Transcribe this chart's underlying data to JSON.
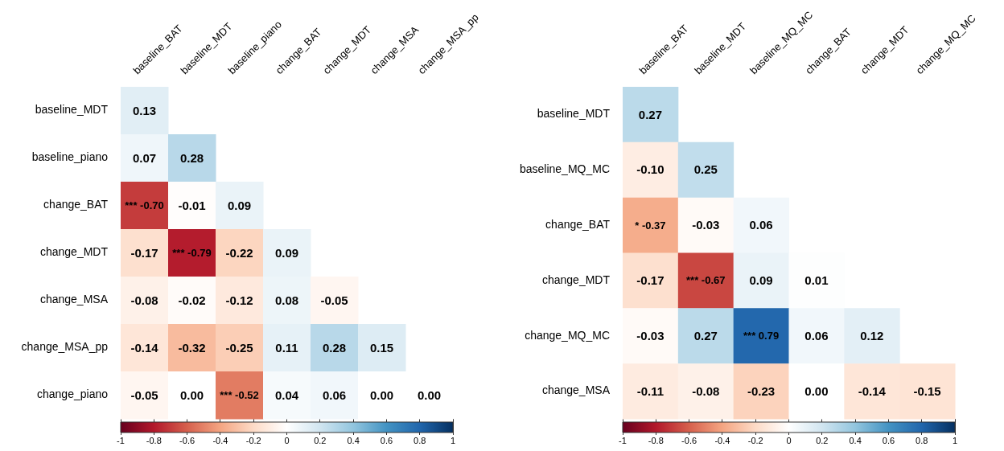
{
  "chart_data": [
    {
      "type": "heatmap",
      "categories": [
        "baseline_BAT",
        "baseline_MDT",
        "baseline_piano",
        "change_BAT",
        "change_MDT",
        "change_MSA",
        "change_MSA_pp"
      ],
      "y_categories": [
        "baseline_MDT",
        "baseline_piano",
        "change_BAT",
        "change_MDT",
        "change_MSA",
        "change_MSA_pp",
        "change_piano"
      ],
      "cells": [
        [
          0.13,
          null,
          null,
          null,
          null,
          null,
          null
        ],
        [
          0.07,
          0.28,
          null,
          null,
          null,
          null,
          null
        ],
        [
          -0.7,
          -0.01,
          0.09,
          null,
          null,
          null,
          null
        ],
        [
          -0.17,
          -0.79,
          -0.22,
          0.09,
          null,
          null,
          null
        ],
        [
          -0.08,
          -0.02,
          -0.12,
          0.08,
          -0.05,
          null,
          null
        ],
        [
          -0.14,
          -0.32,
          -0.25,
          0.11,
          0.28,
          0.15,
          null
        ],
        [
          -0.05,
          0.0,
          -0.52,
          0.04,
          0.06,
          0.0,
          0.0
        ]
      ],
      "cell_labels": [
        [
          "0.13",
          null,
          null,
          null,
          null,
          null,
          null
        ],
        [
          "0.07",
          "0.28",
          null,
          null,
          null,
          null,
          null
        ],
        [
          "***\n-0.70",
          "-0.01",
          "0.09",
          null,
          null,
          null,
          null
        ],
        [
          "-0.17",
          "***\n-0.79",
          "-0.22",
          "0.09",
          null,
          null,
          null
        ],
        [
          "-0.08",
          "-0.02",
          "-0.12",
          "0.08",
          "-0.05",
          null,
          null
        ],
        [
          "-0.14",
          "-0.32",
          "-0.25",
          "0.11",
          "0.28",
          "0.15",
          null
        ],
        [
          "-0.05",
          "0.00",
          "***\n-0.52",
          "0.04",
          "0.06",
          "0.00",
          "0.00"
        ]
      ],
      "clim": [
        -1,
        1
      ],
      "cticks": [
        -1,
        -0.8,
        -0.6,
        -0.4,
        -0.2,
        0,
        0.2,
        0.4,
        0.6,
        0.8,
        1
      ]
    },
    {
      "type": "heatmap",
      "categories": [
        "baseline_BAT",
        "baseline_MDT",
        "baseline_MQ_MC",
        "change_BAT",
        "change_MDT",
        "change_MQ_MC"
      ],
      "y_categories": [
        "baseline_MDT",
        "baseline_MQ_MC",
        "change_BAT",
        "change_MDT",
        "change_MQ_MC",
        "change_MSA"
      ],
      "cells": [
        [
          0.27,
          null,
          null,
          null,
          null,
          null
        ],
        [
          -0.1,
          0.25,
          null,
          null,
          null,
          null
        ],
        [
          -0.37,
          -0.03,
          0.06,
          null,
          null,
          null
        ],
        [
          -0.17,
          -0.67,
          0.09,
          0.01,
          null,
          null
        ],
        [
          -0.03,
          0.27,
          0.79,
          0.06,
          0.12,
          null
        ],
        [
          -0.11,
          -0.08,
          -0.23,
          0.0,
          -0.14,
          -0.15
        ]
      ],
      "cell_labels": [
        [
          "0.27",
          null,
          null,
          null,
          null,
          null
        ],
        [
          "-0.10",
          "0.25",
          null,
          null,
          null,
          null
        ],
        [
          "*\n-0.37",
          "-0.03",
          "0.06",
          null,
          null,
          null
        ],
        [
          "-0.17",
          "***\n-0.67",
          "0.09",
          "0.01",
          null,
          null
        ],
        [
          "-0.03",
          "0.27",
          "***\n0.79",
          "0.06",
          "0.12",
          null
        ],
        [
          "-0.11",
          "-0.08",
          "-0.23",
          "0.00",
          "-0.14",
          "-0.15"
        ]
      ],
      "clim": [
        -1,
        1
      ],
      "cticks": [
        -1,
        -0.8,
        -0.6,
        -0.4,
        -0.2,
        0,
        0.2,
        0.4,
        0.6,
        0.8,
        1
      ]
    }
  ]
}
